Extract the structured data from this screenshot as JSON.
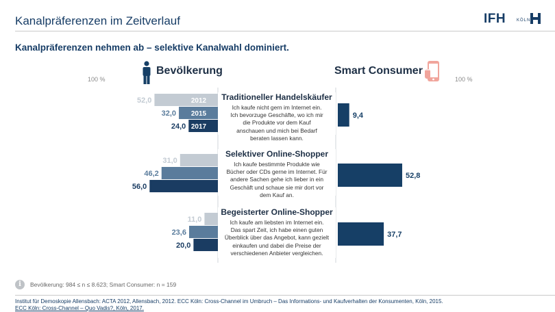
{
  "header": {
    "title": "Kanalpräferenzen im Zeitverlauf",
    "subtitle": "Kanalpräferenzen nehmen ab – selektive Kanalwahl dominiert."
  },
  "logo": {
    "text": "IFH",
    "sub": "KÖLN",
    "icon": "ifh-logo-mark"
  },
  "colors": {
    "y2012": "#c3cbd3",
    "y2015": "#5a7c9c",
    "y2017": "#1a3c62",
    "smart": "#163f66",
    "divider": "#cfd4da",
    "icon_person": "#163f66",
    "icon_phone": "#f1a59c"
  },
  "groups": {
    "left": {
      "label": "Bevölkerung",
      "icon": "person-icon",
      "scale_label": "100 %"
    },
    "right": {
      "label": "Smart Consumer",
      "icon": "smartphone-icon",
      "scale_label": "100 %"
    }
  },
  "segments": [
    {
      "title": "Traditioneller Handelskäufer",
      "description": "Ich kaufe nicht gern im Internet ein. Ich bevorzuge Geschäfte, wo ich mir die Produkte vor dem Kauf anschauen und mich bei Bedarf beraten lassen kann."
    },
    {
      "title": "Selektiver Online-Shopper",
      "description": "Ich kaufe bestimmte Produkte wie Bücher oder CDs gerne im Internet. Für andere Sachen gehe ich lieber in ein Geschäft und schaue sie mir dort vor dem Kauf an."
    },
    {
      "title": "Begeisterter Online-Shopper",
      "description": "Ich kaufe am liebsten im Internet ein. Das spart Zeit, ich habe einen guten Überblick über das Angebot, kann gezielt einkaufen und dabei die Preise der verschiedenen Anbieter vergleichen."
    }
  ],
  "chart_data": {
    "type": "bar",
    "orientation": "horizontal-butterfly",
    "title": "Kanalpräferenzen nehmen ab – selektive Kanalwahl dominiert.",
    "xlim": [
      0,
      100
    ],
    "categories": [
      "Traditioneller Handelskäufer",
      "Selektiver Online-Shopper",
      "Begeisterter Online-Shopper"
    ],
    "series": [
      {
        "name": "2012",
        "group": "Bevölkerung",
        "values": [
          52.0,
          31.0,
          11.0
        ],
        "labels": [
          "52,0",
          "31,0",
          "11,0"
        ]
      },
      {
        "name": "2015",
        "group": "Bevölkerung",
        "values": [
          32.0,
          46.2,
          23.6
        ],
        "labels": [
          "32,0",
          "46,2",
          "23,6"
        ]
      },
      {
        "name": "2017",
        "group": "Bevölkerung",
        "values": [
          24.0,
          56.0,
          20.0
        ],
        "labels": [
          "24,0",
          "56,0",
          "20,0"
        ]
      },
      {
        "name": "Smart Consumer",
        "group": "Smart Consumer",
        "values": [
          9.4,
          52.8,
          37.7
        ],
        "labels": [
          "9,4",
          "52,8",
          "37,7"
        ]
      }
    ],
    "year_tags": [
      "2012",
      "2015",
      "2017"
    ]
  },
  "footer": {
    "info_icon": "info-icon",
    "info_glyph": "i",
    "sample_note": "Bevölkerung: 984 ≤ n ≤ 8.623; Smart Consumer: n = 159",
    "source_line1": "Institut für Demoskopie Allensbach: ACTA 2012, Allensbach, 2012. ECC Köln: Cross-Channel im Umbruch – Das Informations- und Kaufverhalten der Konsumenten, Köln, 2015.",
    "source_line2": "ECC Köln: Cross-Channel – Quo Vadis?, Köln, 2017."
  }
}
